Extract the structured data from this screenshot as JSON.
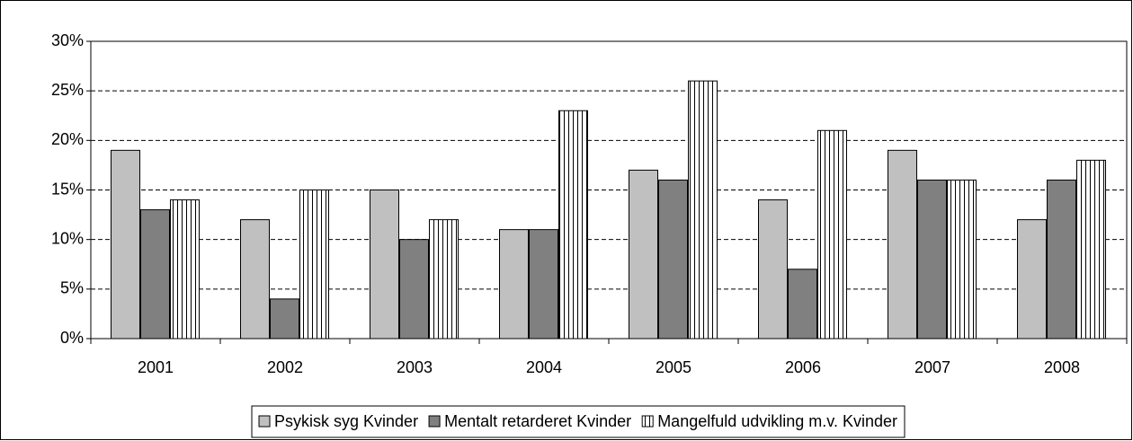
{
  "chart_data": {
    "type": "bar",
    "categories": [
      "2001",
      "2002",
      "2003",
      "2004",
      "2005",
      "2006",
      "2007",
      "2008"
    ],
    "series": [
      {
        "name": "Psykisk syg Kvinder",
        "color": "#c0c0c0",
        "values": [
          19,
          12,
          15,
          11,
          17,
          14,
          19,
          12
        ]
      },
      {
        "name": "Mentalt retarderet Kvinder",
        "color": "#808080",
        "values": [
          13,
          4,
          10,
          11,
          16,
          7,
          16,
          16
        ]
      },
      {
        "name": "Mangelfuld udvikling m.v. Kvinder",
        "color": "#ffffff",
        "pattern": "vertical-lines",
        "values": [
          14,
          15,
          12,
          23,
          26,
          21,
          16,
          18
        ]
      }
    ],
    "ylim": [
      0,
      30
    ],
    "yticks": [
      {
        "value": 0,
        "label": "0%"
      },
      {
        "value": 5,
        "label": "5%"
      },
      {
        "value": 10,
        "label": "10%"
      },
      {
        "value": 15,
        "label": "15%"
      },
      {
        "value": 20,
        "label": "20%"
      },
      {
        "value": 25,
        "label": "25%"
      },
      {
        "value": 30,
        "label": "30%"
      }
    ],
    "grid": true,
    "legend": "bottom"
  }
}
